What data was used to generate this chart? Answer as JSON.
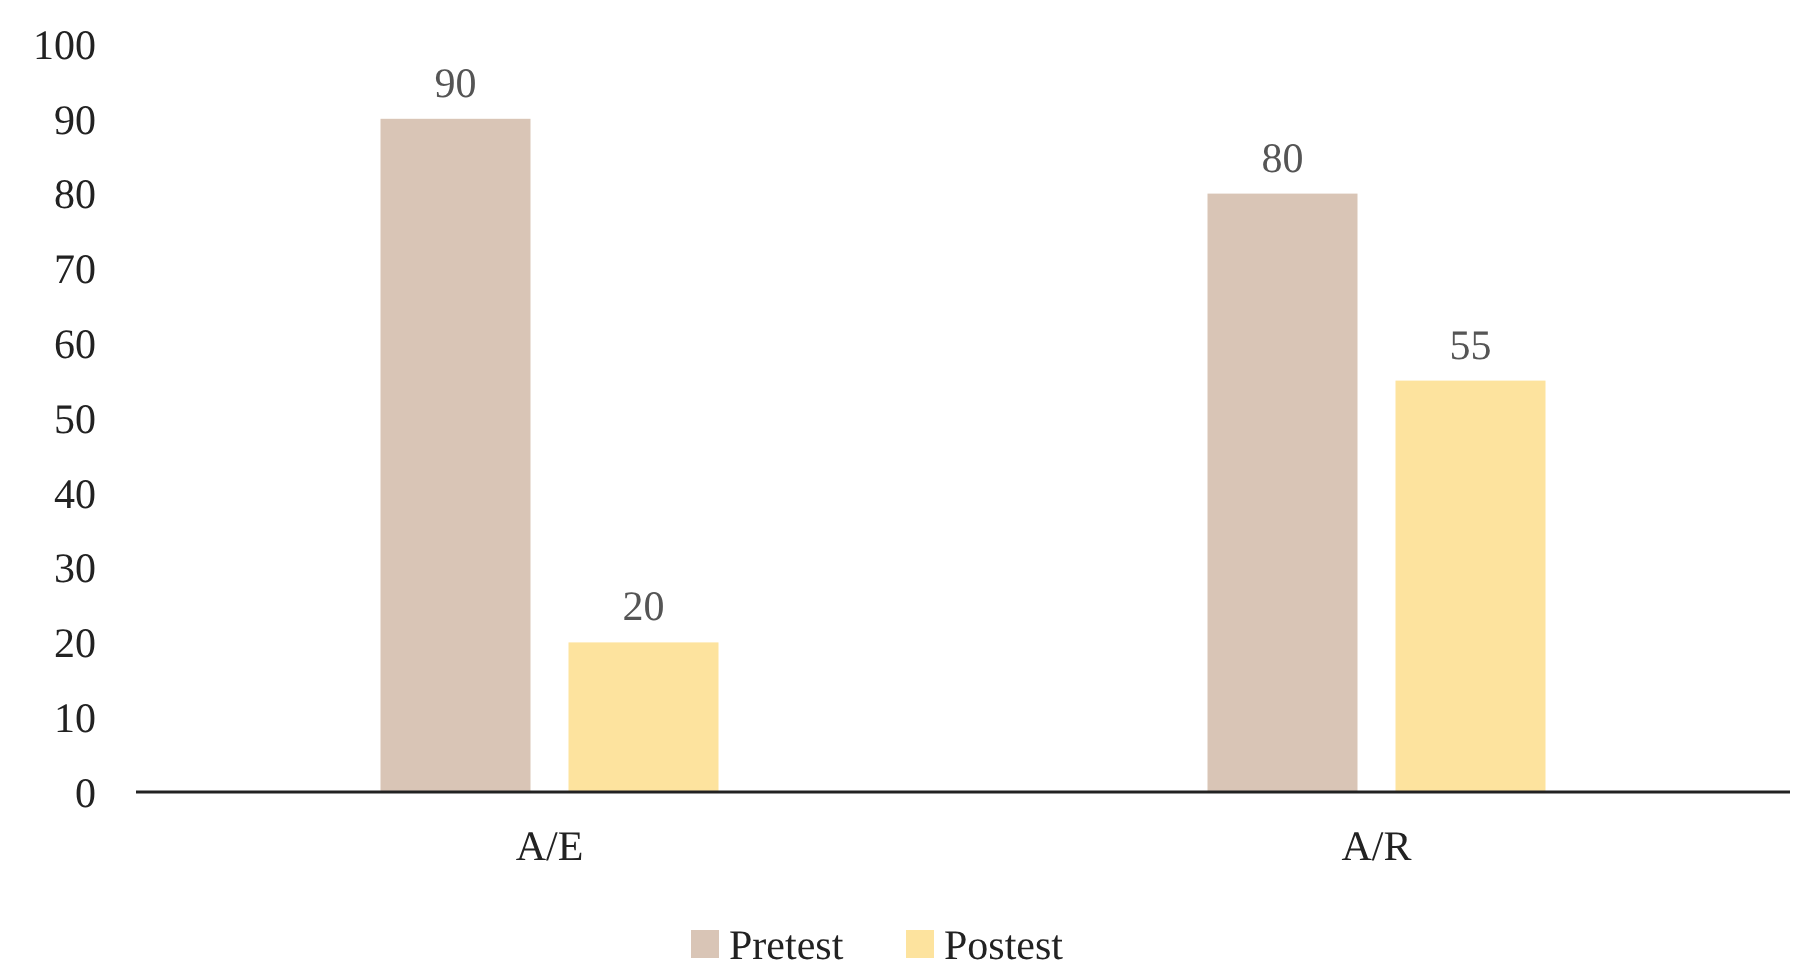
{
  "chart_data": {
    "type": "bar",
    "categories": [
      "A/E",
      "A/R"
    ],
    "series": [
      {
        "name": "Pretest",
        "color": "#d9c5b6",
        "values": [
          90,
          80
        ]
      },
      {
        "name": "Postest",
        "color": "#fde39e",
        "values": [
          20,
          55
        ]
      }
    ],
    "ylim": [
      0,
      100
    ],
    "yticks": [
      0,
      10,
      20,
      30,
      40,
      50,
      60,
      70,
      80,
      90,
      100
    ],
    "grid": false,
    "legend": "bottom",
    "data_labels": true
  }
}
